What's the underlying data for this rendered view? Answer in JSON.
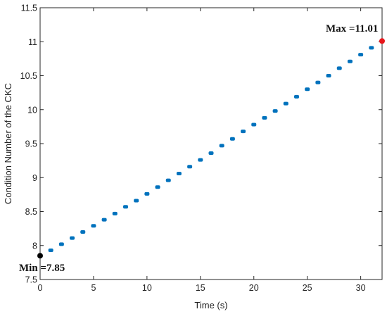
{
  "chart_data": {
    "type": "scatter",
    "title": "",
    "xlabel": "Time (s)",
    "ylabel": "Condition Number of the CKC",
    "xlim": [
      0,
      32
    ],
    "ylim": [
      7.5,
      11.5
    ],
    "xticks": [
      0,
      5,
      10,
      15,
      20,
      25,
      30
    ],
    "yticks": [
      7.5,
      8,
      8.5,
      9,
      9.5,
      10,
      10.5,
      11,
      11.5
    ],
    "grid": false,
    "legend": "none",
    "series": [
      {
        "color": "#0072bd",
        "x": [
          1,
          2,
          3,
          4,
          5,
          6,
          7,
          8,
          9,
          10,
          11,
          12,
          13,
          14,
          15,
          16,
          17,
          18,
          19,
          20,
          21,
          22,
          23,
          24,
          25,
          26,
          27,
          28,
          29,
          30,
          31
        ],
        "y": [
          7.93,
          8.02,
          8.11,
          8.2,
          8.29,
          8.38,
          8.47,
          8.57,
          8.66,
          8.76,
          8.86,
          8.96,
          9.06,
          9.16,
          9.26,
          9.36,
          9.47,
          9.57,
          9.68,
          9.78,
          9.88,
          9.98,
          10.09,
          10.19,
          10.3,
          10.4,
          10.5,
          10.61,
          10.71,
          10.81,
          10.91
        ]
      }
    ],
    "markers": [
      {
        "x": 0,
        "y": 7.85,
        "color": "#000000"
      },
      {
        "x": 32,
        "y": 11.01,
        "color": "#e8161b"
      }
    ],
    "annotations": [
      {
        "text": "Min =7.85"
      },
      {
        "text": "Max =11.01"
      }
    ]
  }
}
